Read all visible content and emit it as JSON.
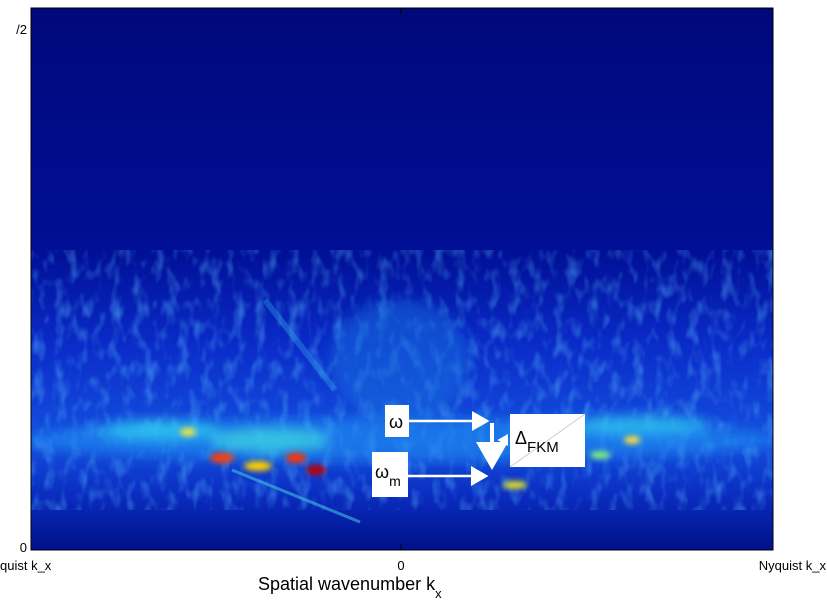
{
  "plot": {
    "y_ticks": [
      "/2",
      "0"
    ],
    "x_ticks": [
      "quist k_x",
      "0",
      "Nyquist k_x"
    ],
    "x_label": {
      "text": "Spatial wavenumber k",
      "subscript": "x"
    }
  },
  "annotations": [
    {
      "symbol": "ω"
    },
    {
      "symbol": "ω",
      "subscript": "m"
    },
    {
      "symbol": "Δ",
      "subscript": "FKM"
    }
  ]
}
